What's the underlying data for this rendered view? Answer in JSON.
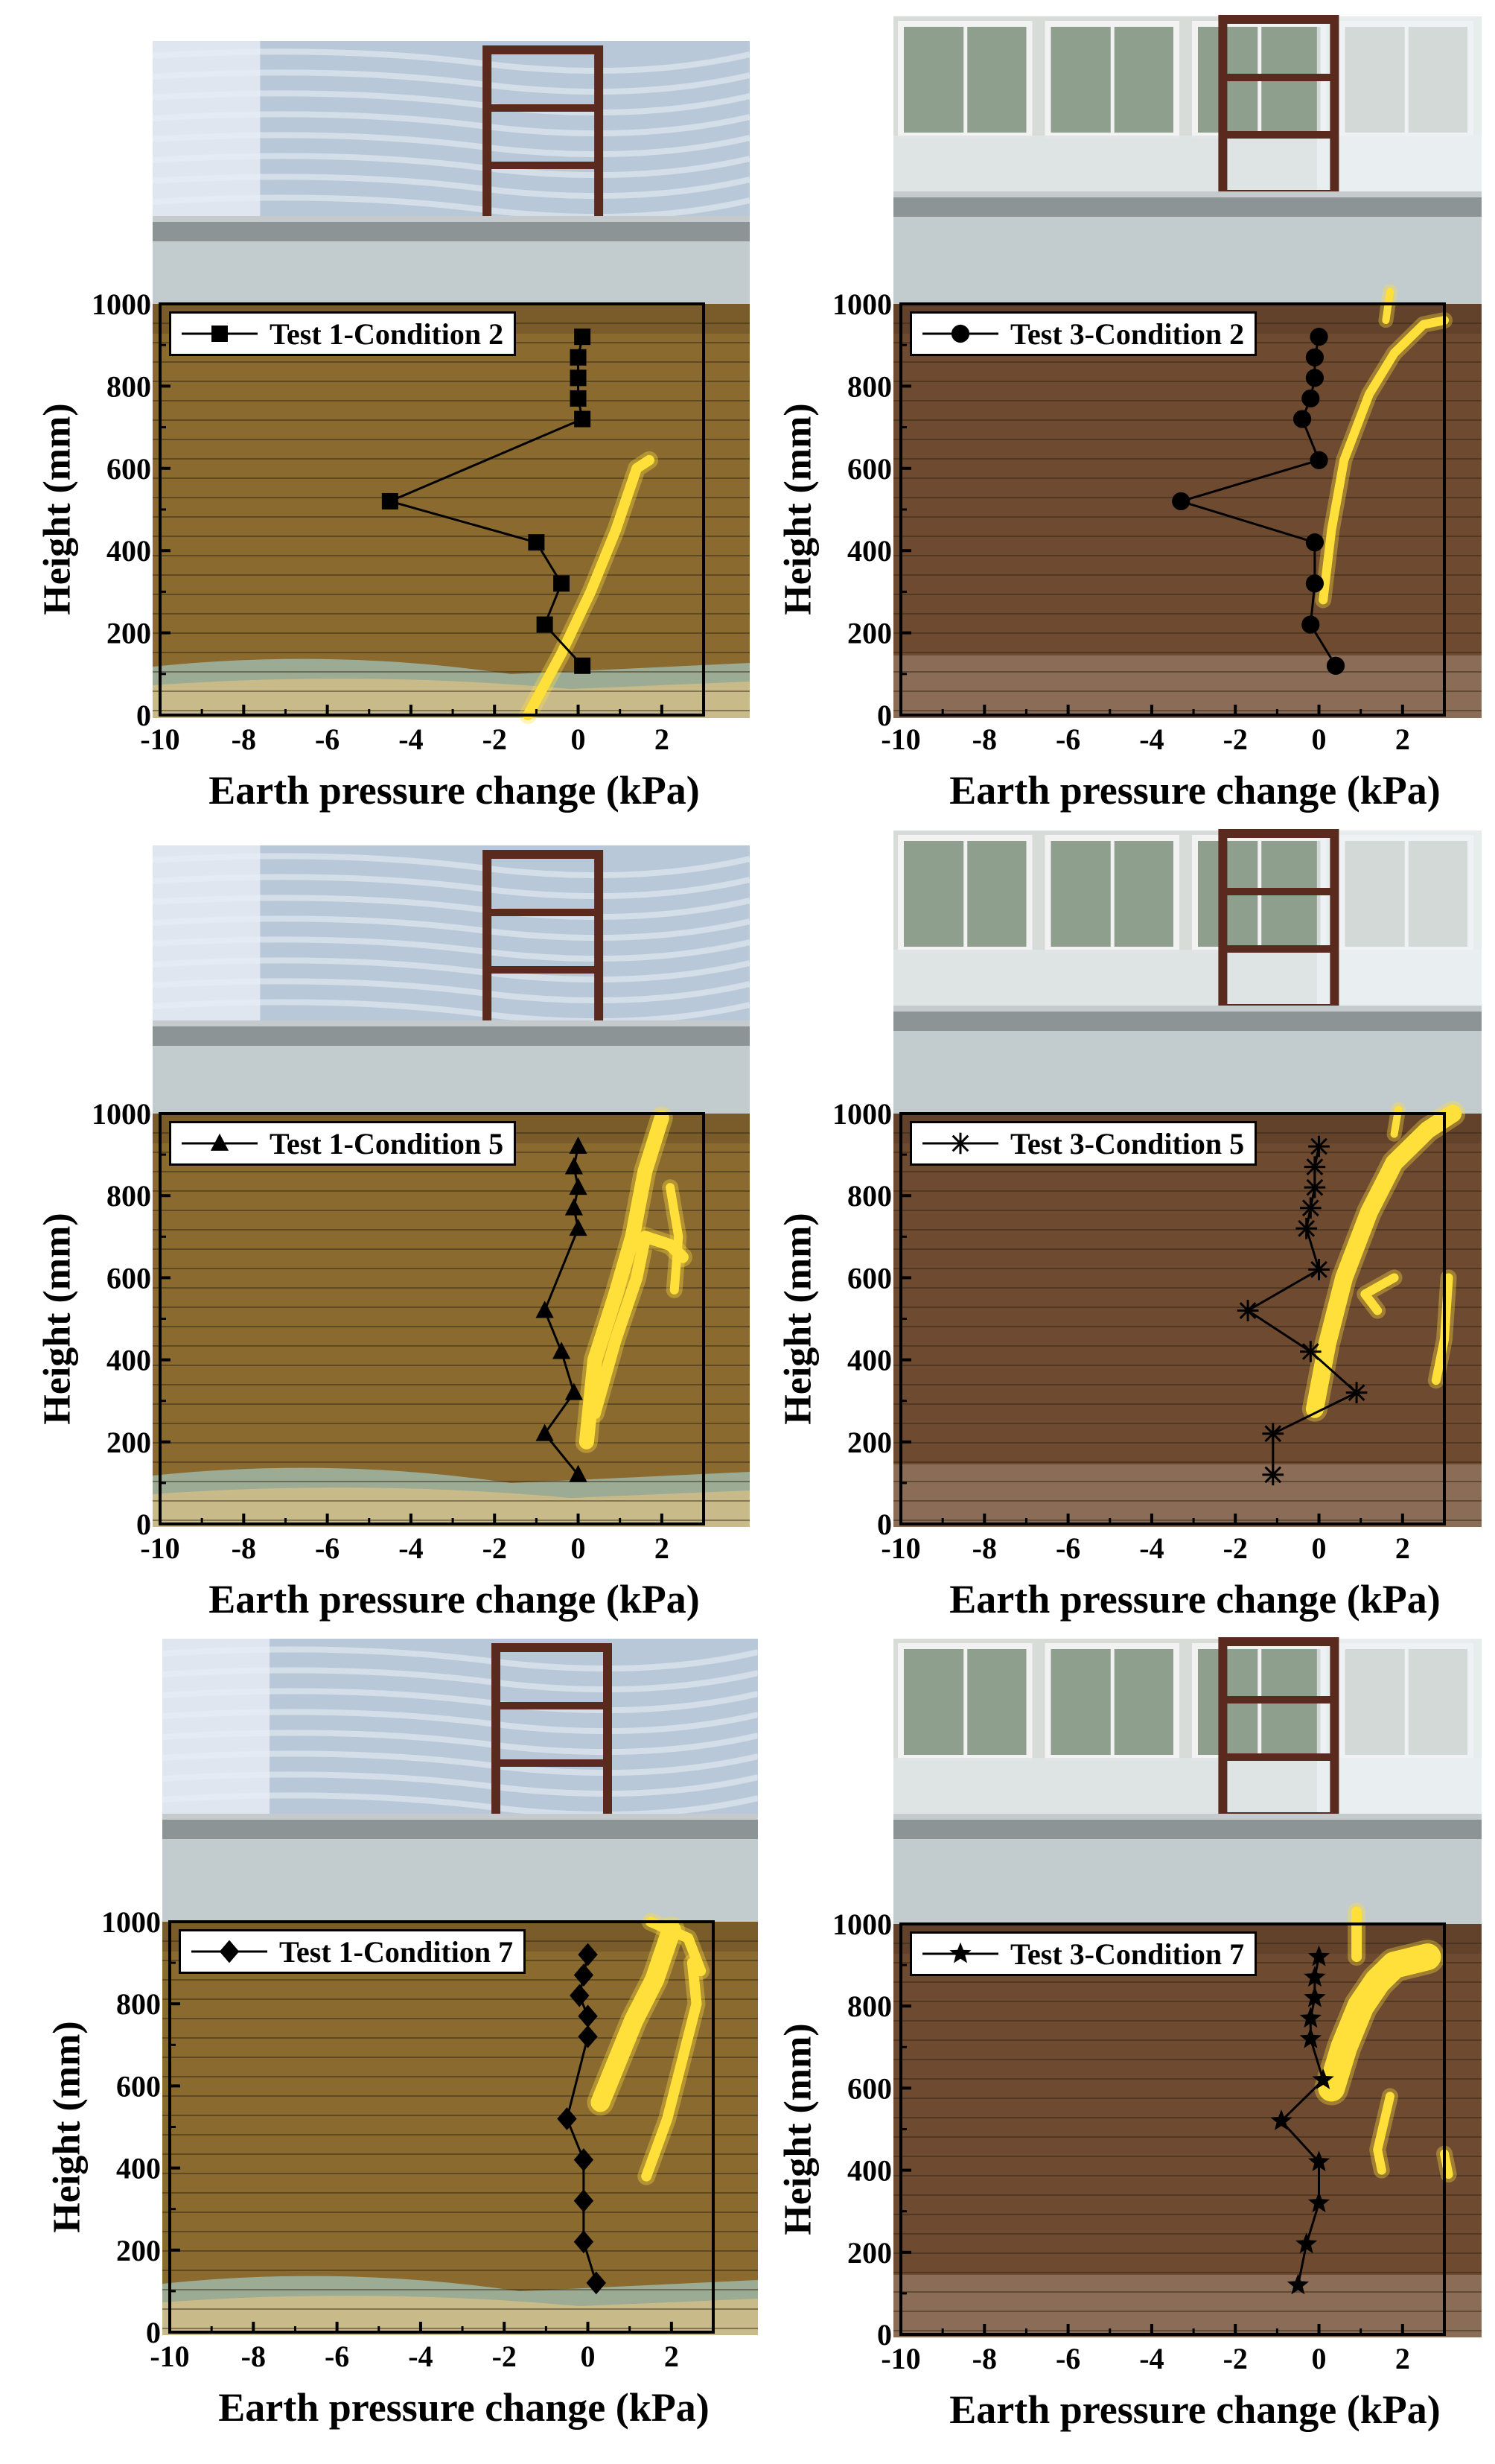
{
  "figure": {
    "colors": {
      "overlay": "#FFE03A",
      "marker": "#000000",
      "axis": "#000000"
    }
  },
  "panels": [
    {
      "legend": "Test 1-Condition 2",
      "marker": "square",
      "photo": {
        "scene": "tarp",
        "soil": "#8a6a2e",
        "soil_top": "#6e5326",
        "blue_band": true
      },
      "ylabel": "Height (mm)",
      "xlabel": "Earth pressure change (kPa)",
      "chart_data": {
        "type": "line",
        "series": [
          {
            "name": "Test 1-Condition 2",
            "x": [
              0.1,
              0.0,
              0.0,
              0.0,
              0.1,
              -4.5,
              -1.0,
              -0.4,
              -0.8,
              0.1
            ],
            "y": [
              920,
              870,
              820,
              770,
              720,
              520,
              420,
              320,
              220,
              120
            ]
          }
        ],
        "xlim": [
          -10,
          3
        ],
        "ylim": [
          0,
          1000
        ],
        "xticks": [
          "-10",
          "-8",
          "-6",
          "-4",
          "-2",
          "0",
          "2"
        ],
        "yticks": [
          "0",
          "200",
          "400",
          "600",
          "800",
          "1000"
        ]
      }
    },
    {
      "legend": "Test 3-Condition 2",
      "marker": "circle",
      "photo": {
        "scene": "window",
        "soil": "#6e4a30",
        "soil_top": "#5c3e28",
        "blue_band": false
      },
      "ylabel": "Height (mm)",
      "xlabel": "Earth pressure change (kPa)",
      "chart_data": {
        "type": "line",
        "series": [
          {
            "name": "Test 3-Condition 2",
            "x": [
              0.0,
              -0.1,
              -0.1,
              -0.2,
              -0.4,
              0.0,
              -3.3,
              -0.1,
              -0.1,
              -0.2,
              0.4
            ],
            "y": [
              920,
              870,
              820,
              770,
              720,
              620,
              520,
              420,
              320,
              220,
              120
            ]
          }
        ],
        "xlim": [
          -10,
          3
        ],
        "ylim": [
          0,
          1000
        ],
        "xticks": [
          "-10",
          "-8",
          "-6",
          "-4",
          "-2",
          "0",
          "2"
        ],
        "yticks": [
          "0",
          "200",
          "400",
          "600",
          "800",
          "1000"
        ]
      }
    },
    {
      "legend": "Test 1-Condition 5",
      "marker": "triangle",
      "photo": {
        "scene": "tarp",
        "soil": "#8a6a2e",
        "soil_top": "#6e5326",
        "blue_band": true
      },
      "ylabel": "Height (mm)",
      "xlabel": "Earth pressure change (kPa)",
      "chart_data": {
        "type": "line",
        "series": [
          {
            "name": "Test 1-Condition 5",
            "x": [
              0.0,
              -0.1,
              0.0,
              -0.1,
              0.0,
              -0.8,
              -0.4,
              -0.1,
              -0.8,
              0.0
            ],
            "y": [
              920,
              870,
              820,
              770,
              720,
              520,
              420,
              320,
              220,
              120
            ]
          }
        ],
        "xlim": [
          -10,
          3
        ],
        "ylim": [
          0,
          1000
        ],
        "xticks": [
          "-10",
          "-8",
          "-6",
          "-4",
          "-2",
          "0",
          "2"
        ],
        "yticks": [
          "0",
          "200",
          "400",
          "600",
          "800",
          "1000"
        ]
      }
    },
    {
      "legend": "Test 3-Condition 5",
      "marker": "asterisk",
      "photo": {
        "scene": "window",
        "soil": "#6e4a30",
        "soil_top": "#5c3e28",
        "blue_band": false
      },
      "ylabel": "Height (mm)",
      "xlabel": "Earth pressure change (kPa)",
      "chart_data": {
        "type": "line",
        "series": [
          {
            "name": "Test 3-Condition 5",
            "x": [
              0.0,
              -0.1,
              -0.1,
              -0.2,
              -0.3,
              0.0,
              -1.7,
              -0.2,
              0.9,
              -1.1,
              -1.1
            ],
            "y": [
              920,
              870,
              820,
              770,
              720,
              620,
              520,
              420,
              320,
              220,
              120
            ]
          }
        ],
        "xlim": [
          -10,
          3
        ],
        "ylim": [
          0,
          1000
        ],
        "xticks": [
          "-10",
          "-8",
          "-6",
          "-4",
          "-2",
          "0",
          "2"
        ],
        "yticks": [
          "0",
          "200",
          "400",
          "600",
          "800",
          "1000"
        ]
      }
    },
    {
      "legend": "Test 1-Condition 7",
      "marker": "diamond",
      "photo": {
        "scene": "tarp",
        "soil": "#8a6a2e",
        "soil_top": "#6e5326",
        "blue_band": true
      },
      "ylabel": "Height (mm)",
      "xlabel": "Earth pressure change (kPa)",
      "chart_data": {
        "type": "line",
        "series": [
          {
            "name": "Test 1-Condition 7",
            "x": [
              0.0,
              -0.1,
              -0.2,
              0.0,
              0.0,
              -0.5,
              -0.1,
              -0.1,
              -0.1,
              0.2
            ],
            "y": [
              920,
              870,
              820,
              770,
              720,
              520,
              420,
              320,
              220,
              120
            ]
          }
        ],
        "xlim": [
          -10,
          3
        ],
        "ylim": [
          0,
          1000
        ],
        "xticks": [
          "-10",
          "-8",
          "-6",
          "-4",
          "-2",
          "0",
          "2"
        ],
        "yticks": [
          "0",
          "200",
          "400",
          "600",
          "800",
          "1000"
        ]
      }
    },
    {
      "legend": "Test 3-Condition 7",
      "marker": "star",
      "photo": {
        "scene": "window",
        "soil": "#6e4a30",
        "soil_top": "#5c3e28",
        "blue_band": false
      },
      "ylabel": "Height (mm)",
      "xlabel": "Earth pressure change (kPa)",
      "chart_data": {
        "type": "line",
        "series": [
          {
            "name": "Test 3-Condition 7",
            "x": [
              0.0,
              -0.1,
              -0.1,
              -0.2,
              -0.2,
              0.1,
              -0.9,
              0.0,
              0.0,
              -0.3,
              -0.5
            ],
            "y": [
              920,
              870,
              820,
              770,
              720,
              620,
              520,
              420,
              320,
              220,
              120
            ]
          }
        ],
        "xlim": [
          -10,
          3
        ],
        "ylim": [
          0,
          1000
        ],
        "xticks": [
          "-10",
          "-8",
          "-6",
          "-4",
          "-2",
          "0",
          "2"
        ],
        "yticks": [
          "0",
          "200",
          "400",
          "600",
          "800",
          "1000"
        ]
      }
    }
  ]
}
